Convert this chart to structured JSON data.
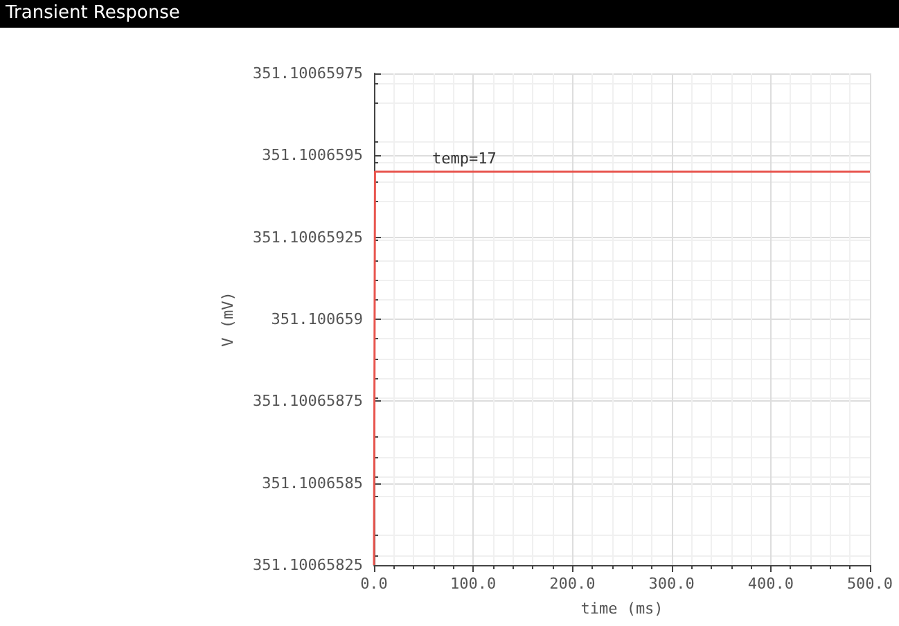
{
  "chart_data": {
    "type": "line",
    "title": "Transient Response",
    "xlabel": "time (ms)",
    "ylabel": "V (mV)",
    "x": [
      0,
      1,
      500
    ],
    "series": [
      {
        "color": "#e8554e",
        "values": [
          351.10065825,
          351.10065945,
          351.10065945
        ]
      }
    ],
    "annotations": [
      "temp=17"
    ],
    "xlim": [
      0,
      500
    ],
    "xticks": [
      {
        "value": 0,
        "label": "0.0"
      },
      {
        "value": 100,
        "label": "100.0"
      },
      {
        "value": 200,
        "label": "200.0"
      },
      {
        "value": 300,
        "label": "300.0"
      },
      {
        "value": 400,
        "label": "400.0"
      },
      {
        "value": 500,
        "label": "500.0"
      }
    ],
    "ylim": [
      351.10065825,
      351.10065975
    ],
    "yticks": [
      351.10065825,
      351.1006585,
      351.10065875,
      351.100659,
      351.10065925,
      351.1006595,
      351.10065975
    ],
    "grid": true,
    "marker": "none",
    "line_style": "solid"
  }
}
